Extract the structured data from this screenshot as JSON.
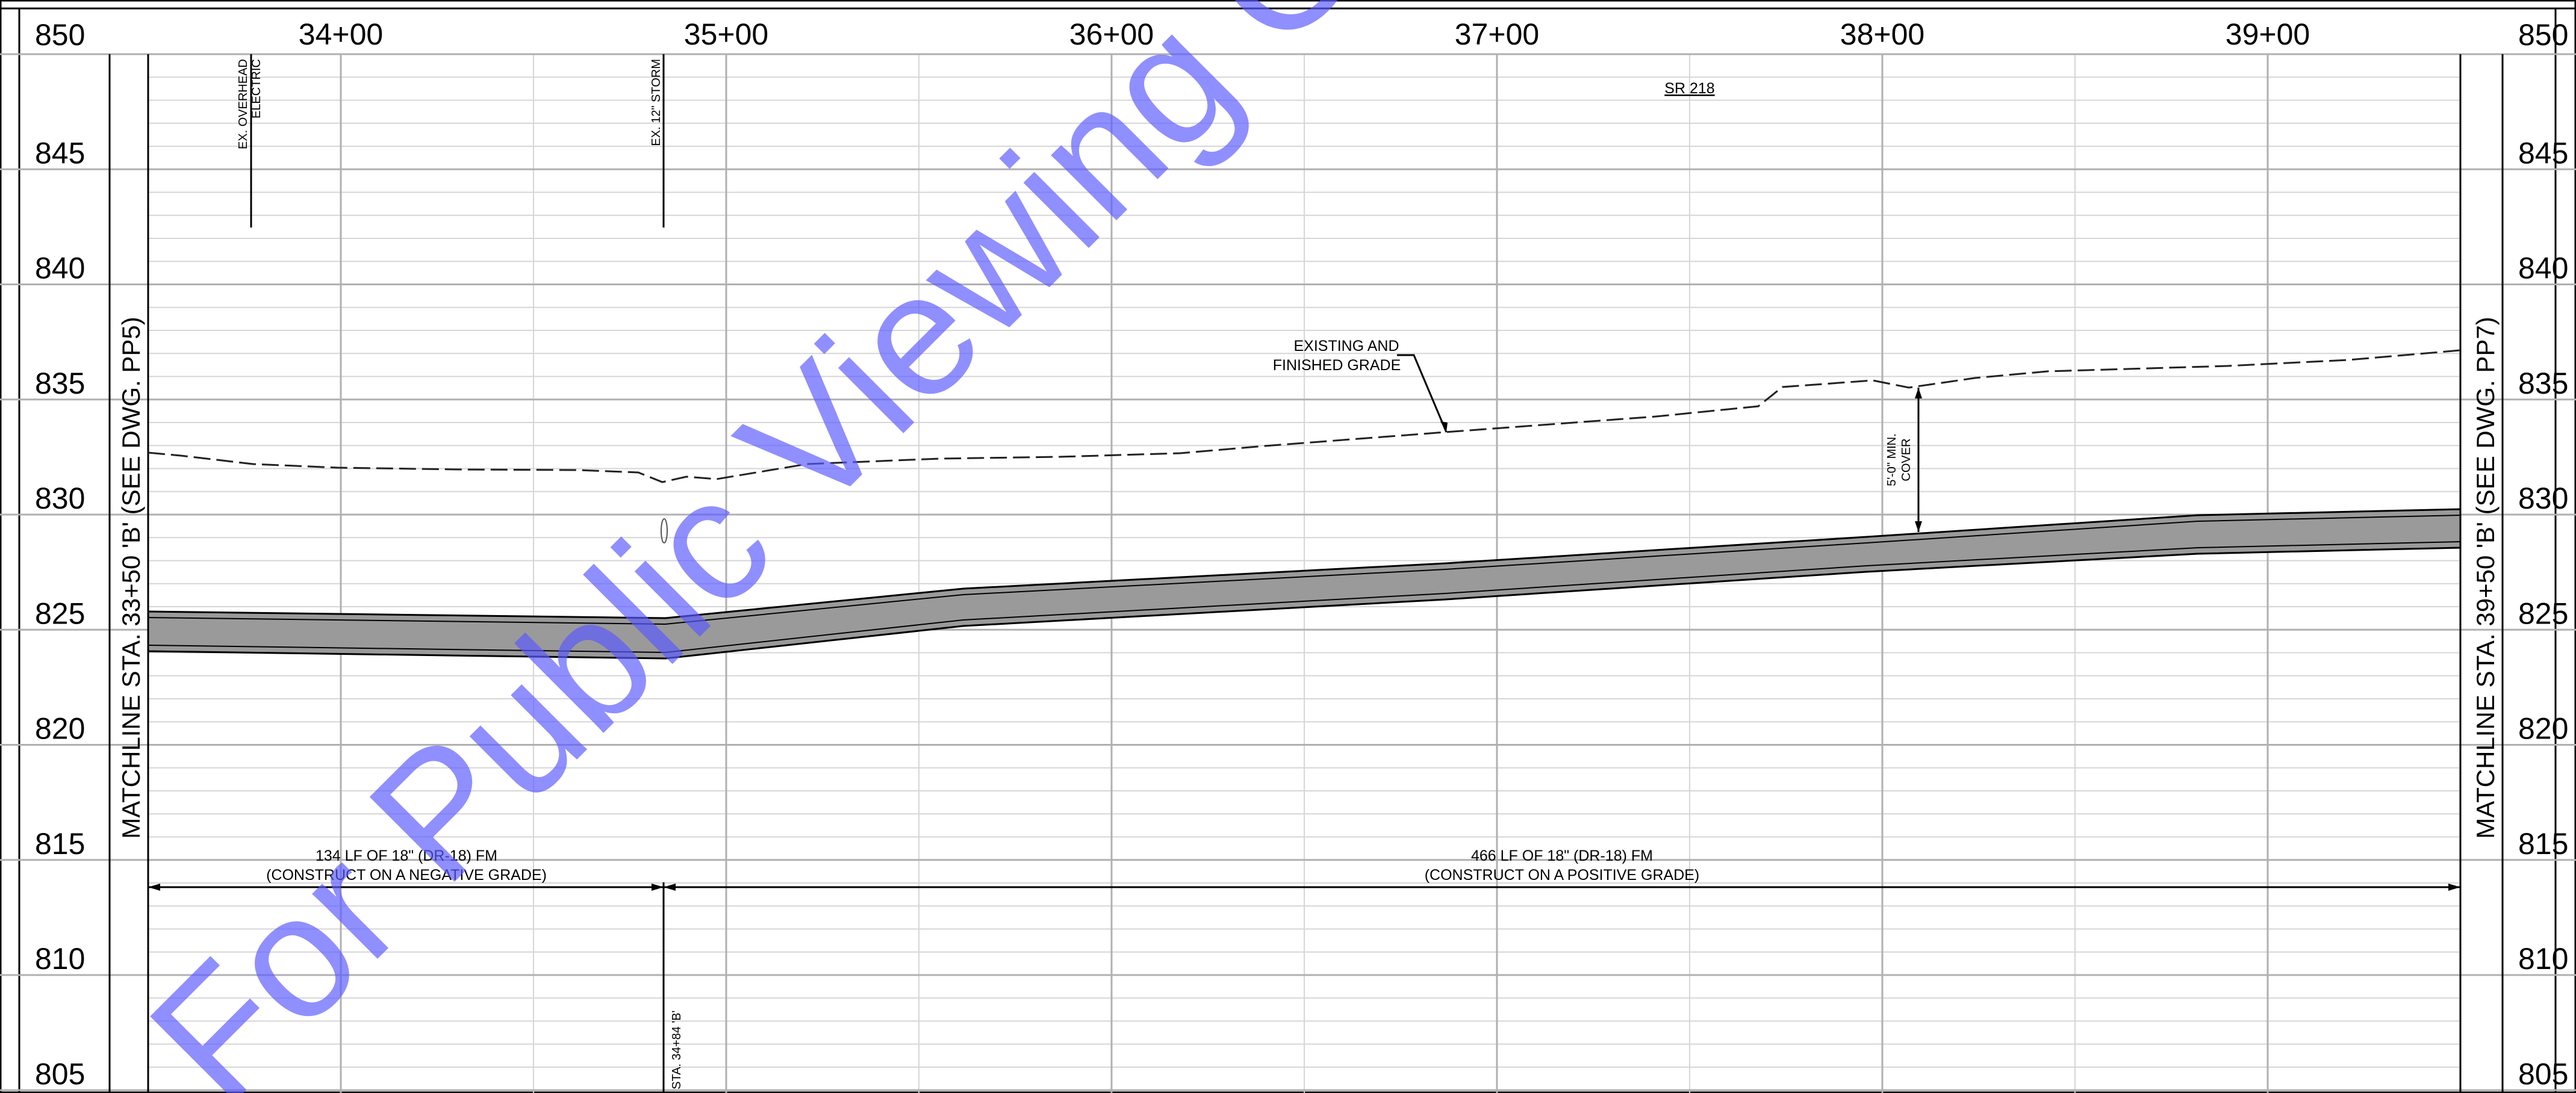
{
  "watermark": {
    "text": "For Public Viewing Only",
    "color": "#5a5aff"
  },
  "elevations": [
    "850",
    "845",
    "840",
    "835",
    "830",
    "825",
    "820",
    "815",
    "810",
    "805"
  ],
  "stations": [
    "34+00",
    "35+00",
    "36+00",
    "37+00",
    "38+00",
    "39+00"
  ],
  "matchline_left": "MATCHLINE STA. 33+50 'B' (SEE DWG. PP5)",
  "matchline_right": "MATCHLINE STA. 39+50 'B' (SEE DWG. PP7)",
  "road_label": "SR 218",
  "utilities": {
    "overhead_line1": "EX. OVERHEAD",
    "overhead_line2": "ELECTRIC",
    "storm": "EX. 12\" STORM"
  },
  "grade_callout": {
    "line1": "EXISTING AND",
    "line2": "FINISHED GRADE"
  },
  "cover_callout": {
    "line1": "5'-0\" MIN.",
    "line2": "COVER"
  },
  "segments": [
    {
      "line1": "134 LF OF 18\" (DR-18) FM",
      "line2": "(CONSTRUCT ON A NEGATIVE GRADE)"
    },
    {
      "line1": "466 LF OF 18\" (DR-18) FM",
      "line2": "(CONSTRUCT ON A POSITIVE GRADE)"
    }
  ],
  "break_station": "STA. 34+84 'B'",
  "colors": {
    "pipe_fill": "#9a9a9a",
    "grid_major": "#b0b0b0",
    "grid_minor": "#d6d6d6"
  }
}
